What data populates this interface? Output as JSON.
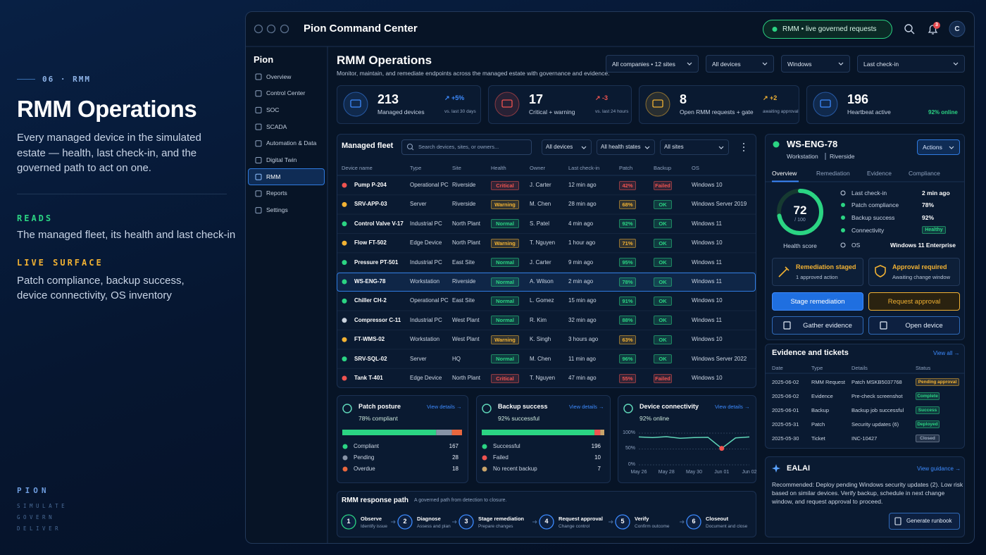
{
  "left": {
    "eyebrow": "06 · RMM",
    "title": "RMM Operations",
    "description": "Every managed device in the simulated estate — health, last check-in, and the governed path to act on one.",
    "reads_label": "READS",
    "reads_text": "The managed fleet, its health and last check-in",
    "live_label": "LIVE SURFACE",
    "live_text": "Patch compliance, backup success, device connectivity, OS inventory",
    "brand": "PION",
    "taglines": [
      "SIMULATE",
      "GOVERN",
      "DELIVER"
    ]
  },
  "window": {
    "title": "Pion Command Center",
    "status": "RMM • live governed requests",
    "notification_count": 3,
    "avatar": "C"
  },
  "sidebar": {
    "brand": "Pion",
    "items": [
      "Overview",
      "Control Center",
      "SOC",
      "SCADA",
      "Automation & Data",
      "Digital Twin",
      "RMM",
      "Reports",
      "Settings"
    ],
    "active": 6
  },
  "header": {
    "title": "RMM Operations",
    "subtitle": "Monitor, maintain, and remediate endpoints across the managed estate with governance and evidence.",
    "filters": [
      "All companies • 12 sites",
      "All devices",
      "Windows",
      "Last check-in"
    ]
  },
  "kpis": [
    {
      "value": 213,
      "label": "Managed devices",
      "delta": "↗ +5%",
      "period": "vs. last 30 days",
      "color": "#3d8bff"
    },
    {
      "value": 17,
      "label": "Critical + warning",
      "delta": "↗ -3",
      "period": "vs. last 24 hours",
      "color": "#ef5350"
    },
    {
      "value": 8,
      "label": "Open RMM requests + gate",
      "delta": "↗ +2",
      "period": "awaiting approval",
      "color": "#f2b233"
    },
    {
      "value": 196,
      "label": "Heartbeat active",
      "period": "92% online",
      "color": "#3d8bff"
    }
  ],
  "styles": {
    "Critical": "#ef5350",
    "Warning": "#f2b233",
    "Normal": "#2bd483",
    "Failed": "#ef5350",
    "OK": "#2bd483",
    "Healthy": "#2bd483",
    "Pending approval": "#f2b233",
    "Complete": "#2bd483",
    "Success": "#2bd483",
    "Deployed": "#2bd483",
    "Closed": "#9aa8bc"
  },
  "fleet": {
    "title": "Managed fleet",
    "search_placeholder": "Search devices, sites, or owners...",
    "filters": [
      "All devices",
      "All health states",
      "All sites"
    ],
    "columns": [
      "Device name",
      "Type",
      "Site",
      "Health",
      "Owner",
      "Last check-in",
      "Patch",
      "Backup",
      "OS"
    ],
    "selected": 5,
    "rows": [
      {
        "cells": [
          "Pump P-204",
          "Operational PC",
          "Riverside",
          "Critical",
          "J. Carter",
          "12 min ago",
          "42%",
          "Failed",
          "Windows 10"
        ],
        "dot": "#ef5350",
        "patch_color": "#ef5350"
      },
      {
        "cells": [
          "SRV-APP-03",
          "Server",
          "Riverside",
          "Warning",
          "M. Chen",
          "28 min ago",
          "68%",
          "OK",
          "Windows Server 2019"
        ],
        "dot": "#f2b233",
        "patch_color": "#f2b233"
      },
      {
        "cells": [
          "Control Valve V-17",
          "Industrial PC",
          "North Plant",
          "Normal",
          "S. Patel",
          "4 min ago",
          "92%",
          "OK",
          "Windows 11"
        ],
        "dot": "#2bd483",
        "patch_color": "#2bd483"
      },
      {
        "cells": [
          "Flow FT-502",
          "Edge Device",
          "North Plant",
          "Warning",
          "T. Nguyen",
          "1 hour ago",
          "71%",
          "OK",
          "Windows 10"
        ],
        "dot": "#f2b233",
        "patch_color": "#f2b233"
      },
      {
        "cells": [
          "Pressure PT-501",
          "Industrial PC",
          "East Site",
          "Normal",
          "J. Carter",
          "9 min ago",
          "95%",
          "OK",
          "Windows 11"
        ],
        "dot": "#2bd483",
        "patch_color": "#2bd483"
      },
      {
        "cells": [
          "WS-ENG-78",
          "Workstation",
          "Riverside",
          "Normal",
          "A. Wilson",
          "2 min ago",
          "78%",
          "OK",
          "Windows 11"
        ],
        "dot": "#2bd483",
        "patch_color": "#2bd483"
      },
      {
        "cells": [
          "Chiller CH-2",
          "Operational PC",
          "East Site",
          "Normal",
          "L. Gomez",
          "15 min ago",
          "91%",
          "OK",
          "Windows 10"
        ],
        "dot": "#2bd483",
        "patch_color": "#2bd483"
      },
      {
        "cells": [
          "Compressor C-11",
          "Industrial PC",
          "West Plant",
          "Normal",
          "R. Kim",
          "32 min ago",
          "88%",
          "OK",
          "Windows 11"
        ],
        "dot": "#c9d2de",
        "patch_color": "#2bd483"
      },
      {
        "cells": [
          "FT-WMS-02",
          "Workstation",
          "West Plant",
          "Warning",
          "K. Singh",
          "3 hours ago",
          "63%",
          "OK",
          "Windows 10"
        ],
        "dot": "#f2b233",
        "patch_color": "#f2b233"
      },
      {
        "cells": [
          "SRV-SQL-02",
          "Server",
          "HQ",
          "Normal",
          "M. Chen",
          "11 min ago",
          "96%",
          "OK",
          "Windows Server 2022"
        ],
        "dot": "#2bd483",
        "patch_color": "#2bd483"
      },
      {
        "cells": [
          "Tank T-401",
          "Edge Device",
          "North Plant",
          "Critical",
          "T. Nguyen",
          "47 min ago",
          "55%",
          "Failed",
          "Windows 10"
        ],
        "dot": "#ef5350",
        "patch_color": "#ef5350"
      }
    ]
  },
  "detail": {
    "name": "WS-ENG-78",
    "type": "Workstation",
    "site": "Riverside",
    "actions": "Actions",
    "tabs": [
      "Overview",
      "Remediation",
      "Evidence",
      "Compliance"
    ],
    "active_tab": 0,
    "score": 72,
    "score_max": {
      "value": 100,
      "label": "/ 100"
    },
    "score_label": "Health score",
    "facts": [
      [
        "Last check-in",
        "2 min ago"
      ],
      [
        "Patch compliance",
        "78%"
      ],
      [
        "Backup success",
        "92%"
      ],
      [
        "Connectivity",
        "Healthy"
      ],
      [
        "OS",
        "Windows 11 Enterprise"
      ]
    ],
    "cards": [
      {
        "title": "Remediation staged",
        "subtitle": "1 approved action"
      },
      {
        "title": "Approval required",
        "subtitle": "Awaiting change window"
      }
    ],
    "buttons": [
      "Stage remediation",
      "Request approval",
      "Gather evidence",
      "Open device"
    ]
  },
  "evidence": {
    "title": "Evidence and tickets",
    "link": "View all →",
    "columns": [
      "Date",
      "Type",
      "Details",
      "Status"
    ],
    "rows": [
      [
        "2025-06-02",
        "RMM Request",
        "Patch MSKB5037768",
        "Pending approval"
      ],
      [
        "2025-06-02",
        "Evidence",
        "Pre-check screenshot",
        "Complete"
      ],
      [
        "2025-06-01",
        "Backup",
        "Backup job successful",
        "Success"
      ],
      [
        "2025-05-31",
        "Patch",
        "Security updates (6)",
        "Deployed"
      ],
      [
        "2025-05-30",
        "Ticket",
        "INC-10427",
        "Closed"
      ]
    ]
  },
  "ealai": {
    "title": "EALAI",
    "link": "View guidance →",
    "text": "Recommended: Deploy pending Windows security updates (2). Low risk based on similar devices. Verify backup, schedule in next change window, and request approval to proceed.",
    "button": "Generate runbook"
  },
  "patch_posture": {
    "title": "Patch posture",
    "link": "View details →",
    "summary": "78% compliant",
    "series": [
      {
        "name": "Compliant",
        "value": 167,
        "color": "#2bd483"
      },
      {
        "name": "Pending",
        "value": 28,
        "color": "#8793a6"
      },
      {
        "name": "Overdue",
        "value": 18,
        "color": "#e8673e"
      }
    ]
  },
  "backup": {
    "title": "Backup success",
    "link": "View details →",
    "summary": "92% successful",
    "series": [
      {
        "name": "Successful",
        "value": 196,
        "color": "#2bd483"
      },
      {
        "name": "Failed",
        "value": 10,
        "color": "#ef5350"
      },
      {
        "name": "No recent backup",
        "value": 7,
        "color": "#c9a46a"
      }
    ]
  },
  "connectivity": {
    "title": "Device connectivity",
    "link": "View details →",
    "summary": "92% online",
    "chart": {
      "type": "line",
      "categories": [
        "May 26",
        null,
        "May 28",
        null,
        "May 30",
        null,
        "Jun 01",
        null,
        "Jun 02"
      ],
      "values": [
        88,
        86,
        89,
        84,
        86,
        87,
        52,
        85,
        88
      ],
      "ylim": [
        0,
        100
      ],
      "yticks": [
        {
          "value": 0,
          "label": "0%"
        },
        {
          "value": 50,
          "label": "50%"
        },
        {
          "value": 100,
          "label": "100%"
        }
      ],
      "grid": true,
      "color": "#5fd6b8",
      "highlight": 6,
      "highlight_color": "#ef5350"
    }
  },
  "response_path": {
    "title": "RMM response path",
    "subtitle": "A governed path from detection to closure.",
    "steps": [
      {
        "number": 1,
        "title": "Observe",
        "subtitle": "Identify issue"
      },
      {
        "number": 2,
        "title": "Diagnose",
        "subtitle": "Assess and plan"
      },
      {
        "number": 3,
        "title": "Stage remediation",
        "subtitle": "Prepare changes"
      },
      {
        "number": 4,
        "title": "Request approval",
        "subtitle": "Change control"
      },
      {
        "number": 5,
        "title": "Verify",
        "subtitle": "Confirm outcome"
      },
      {
        "number": 6,
        "title": "Closeout",
        "subtitle": "Document and close"
      }
    ]
  }
}
